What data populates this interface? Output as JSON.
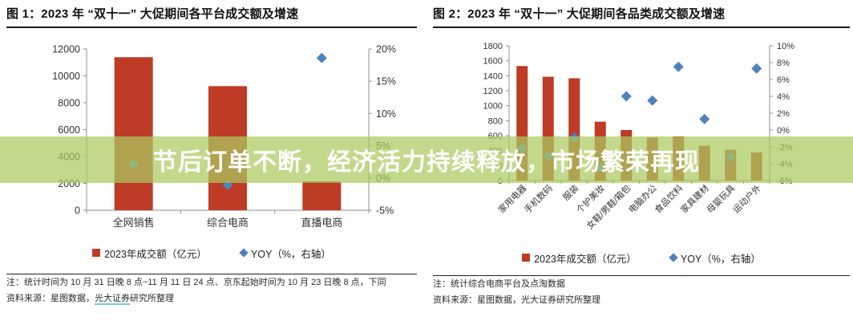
{
  "overlay": {
    "text": "节后订单不断，经济活力持续释放，市场繁荣再现"
  },
  "colors": {
    "bar": "#BE3B26",
    "marker": "#4F81BD",
    "axis": "#8F8F8F",
    "text": "#333333",
    "overlay_band": "#AACA5F",
    "overlay_band_rgba": "rgba(170,202,95,0.72)",
    "source_link_underline": "#6FCBD6"
  },
  "chart_data": [
    {
      "type": "bar",
      "title": "图 1：2023 年 “双十一” 大促期间各平台成交额及增速",
      "categories": [
        "全网销售",
        "综合电商",
        "直播电商"
      ],
      "series": [
        {
          "name": "2023年成交额（亿元）",
          "type": "bar",
          "axis": "left",
          "values": [
            11386,
            9235,
            2151
          ]
        },
        {
          "name": "YOY（%，右轴）",
          "type": "scatter",
          "axis": "right",
          "values": [
            2.1,
            -1.1,
            18.6
          ]
        }
      ],
      "left_axis": {
        "min": 0,
        "max": 12000,
        "step": 2000
      },
      "right_axis": {
        "min": -5,
        "max": 20,
        "step": 5,
        "unit": "%"
      },
      "grid": false,
      "legend_position": "bottom"
    },
    {
      "type": "bar",
      "title": "图 2：2023 年 “双十一” 大促期间各品类成交额及增速",
      "categories": [
        "家用电器",
        "手机数码",
        "服装",
        "个护美妆",
        "女鞋/男鞋/箱包",
        "电脑办公",
        "食品饮料",
        "家具建材",
        "母婴玩具",
        "运动户外"
      ],
      "series": [
        {
          "name": "2023年成交额（亿元）",
          "type": "bar",
          "axis": "left",
          "values": [
            1529,
            1386,
            1366,
            786,
            675,
            575,
            590,
            465,
            410,
            375
          ]
        },
        {
          "name": "YOY（%，右轴）",
          "type": "scatter",
          "axis": "right",
          "values": [
            -2.2,
            -3.1,
            -0.9,
            -4.4,
            4.0,
            3.5,
            7.5,
            1.3,
            -3.2,
            7.3
          ]
        }
      ],
      "left_axis": {
        "min": 0,
        "max": 1800,
        "step": 200
      },
      "right_axis": {
        "min": -6,
        "max": 10,
        "step": 2,
        "unit": "%"
      },
      "grid": false,
      "legend_position": "bottom",
      "category_label_rotation": -45
    }
  ],
  "left_panel": {
    "note": "注：统计时间为 10 月 31 日晚 8 点~11 月 11 日 24 点、京东起始时间为 10 月 23 日晚 8 点，下同",
    "source_prefix": "资料来源：星图数据，",
    "source_link": "光大证券",
    "source_suffix": "研究所整理"
  },
  "right_panel": {
    "note": "注：统计综合电商平台及点淘数据",
    "source": "资料来源：星图数据，光大证券研究所整理"
  }
}
